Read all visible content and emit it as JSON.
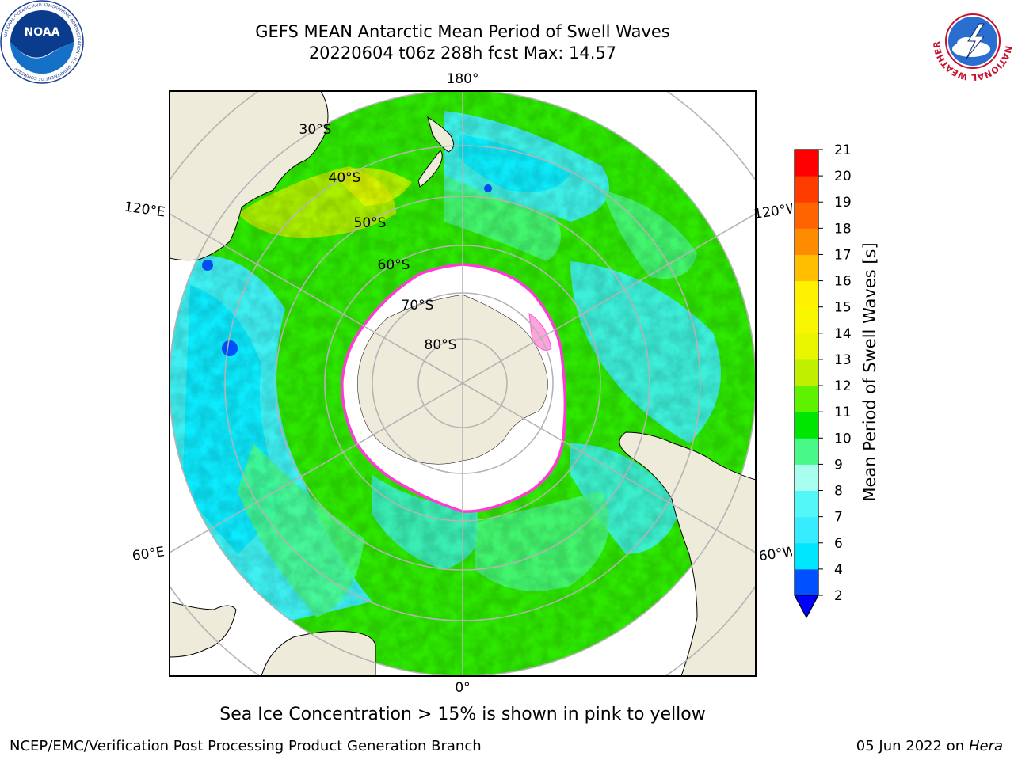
{
  "header": {
    "title_line1": "GEFS MEAN Antarctic Mean Period of Swell Waves",
    "title_line2": "20220604 t06z 288h fcst   Max: 14.57"
  },
  "logos": {
    "noaa_text": "NOAA",
    "noaa_ring": "NATIONAL OCEANIC AND ATMOSPHERIC ADMINISTRATION · U.S. DEPARTMENT OF COMMERCE",
    "nws_ring": "NATIONAL WEATHER SERVICE"
  },
  "map": {
    "projection": "south-polar-stereographic",
    "longitude_labels": [
      "180°",
      "120°E",
      "60°E",
      "0°",
      "60°W",
      "120°W"
    ],
    "latitude_labels": [
      "30°S",
      "40°S",
      "50°S",
      "60°S",
      "70°S",
      "80°S"
    ],
    "colors": {
      "land": "#efebdb",
      "sea_ice": "#ffffff",
      "ice_edge": "#ff3ad8",
      "grid": "#b4b4b4"
    }
  },
  "colorbar": {
    "label": "Mean Period of Swell Waves [s]",
    "levels": [
      "2",
      "4",
      "6",
      "7",
      "8",
      "9",
      "10",
      "11",
      "12",
      "13",
      "14",
      "15",
      "16",
      "17",
      "18",
      "19",
      "20",
      "21"
    ],
    "colors": [
      "#0050ff",
      "#00e6ff",
      "#38ecff",
      "#52f8f8",
      "#a8fff0",
      "#48f888",
      "#00e600",
      "#5ef200",
      "#c0f000",
      "#eaf600",
      "#f8f600",
      "#fff200",
      "#ffbf00",
      "#ff8c00",
      "#ff6400",
      "#ff3c00",
      "#ff0000"
    ],
    "extend_color": "#0000ff"
  },
  "caption": "Sea Ice Concentration > 15% is shown in pink to yellow",
  "footer": {
    "left": "NCEP/EMC/Verification Post Processing Product Generation Branch",
    "date": "05 Jun 2022 on",
    "host": "Hera"
  }
}
